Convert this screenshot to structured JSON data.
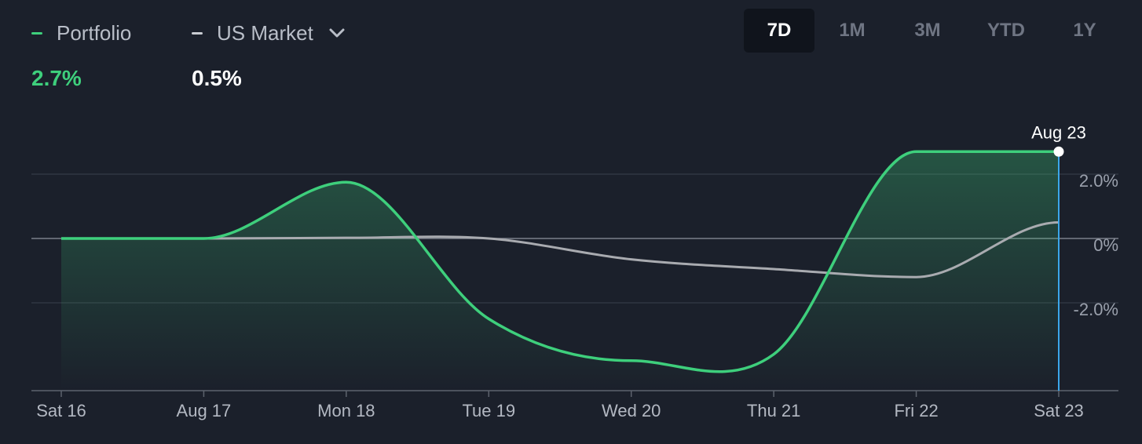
{
  "legend": {
    "portfolio": {
      "label": "Portfolio",
      "value": "2.7%",
      "color": "#3ecf7c"
    },
    "market": {
      "label": "US Market",
      "value": "0.5%",
      "color": "#c9ccd2",
      "dropdown_icon": "chevron-down-icon"
    }
  },
  "ranges": [
    {
      "label": "7D",
      "active": true
    },
    {
      "label": "1M",
      "active": false
    },
    {
      "label": "3M",
      "active": false
    },
    {
      "label": "YTD",
      "active": false
    },
    {
      "label": "1Y",
      "active": false
    }
  ],
  "chart_data": {
    "type": "line",
    "x": [
      "Sat 16",
      "Aug 17",
      "Mon 18",
      "Tue 19",
      "Wed 20",
      "Thu 21",
      "Fri 22",
      "Sat 23"
    ],
    "ylim": [
      -4.8,
      3.4
    ],
    "yticks": [
      2.0,
      0,
      -2.0
    ],
    "ytick_labels": [
      "2.0%",
      "0%",
      "-2.0%"
    ],
    "grid": true,
    "series": [
      {
        "name": "Portfolio",
        "color": "#3ecf7c",
        "values": [
          0.0,
          0.0,
          1.75,
          -2.5,
          -3.8,
          -3.6,
          2.7,
          2.7
        ]
      },
      {
        "name": "US Market",
        "color": "#a9abb0",
        "values": [
          0.0,
          0.0,
          0.02,
          0.0,
          -0.65,
          -0.95,
          -1.2,
          0.5
        ]
      }
    ],
    "marker": {
      "label": "Aug 23",
      "index": 7,
      "color": "#3ba7ea"
    }
  }
}
